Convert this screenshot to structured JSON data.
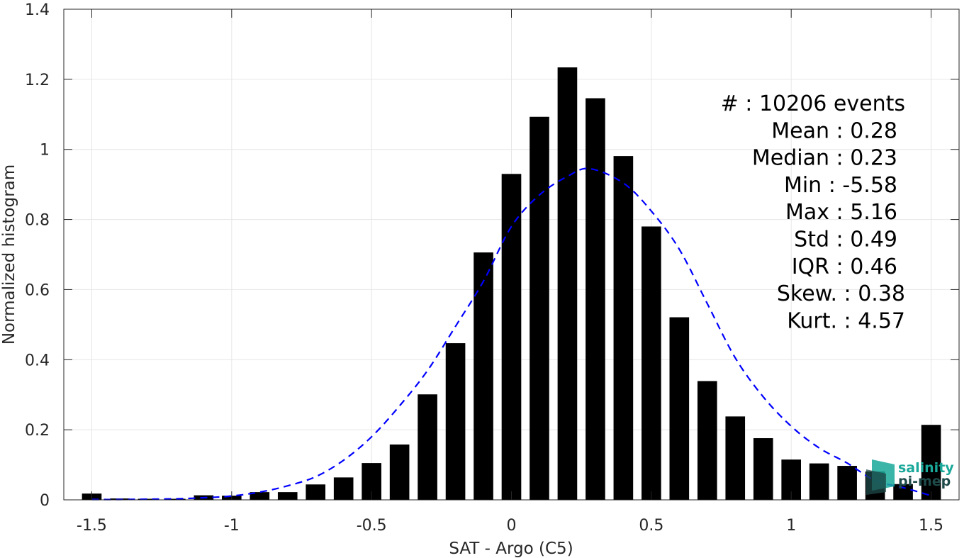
{
  "chart_data": {
    "type": "bar",
    "xlabel": "SAT - Argo (C5)",
    "ylabel": "Normalized histogram",
    "xlim": [
      -1.6,
      1.6
    ],
    "ylim": [
      0,
      1.4
    ],
    "xticks": [
      -1.5,
      -1,
      -0.5,
      0,
      0.5,
      1,
      1.5
    ],
    "xtick_labels": [
      "-1.5",
      "-1",
      "-0.5",
      "0",
      "0.5",
      "1",
      "1.5"
    ],
    "yticks": [
      0,
      0.2,
      0.4,
      0.6,
      0.8,
      1,
      1.2,
      1.4
    ],
    "ytick_labels": [
      "0",
      "0.2",
      "0.4",
      "0.6",
      "0.8",
      "1",
      "1.2",
      "1.4"
    ],
    "grid": true,
    "bar_width": 0.07,
    "bars": {
      "x": [
        -1.5,
        -1.4,
        -1.3,
        -1.2,
        -1.1,
        -1.0,
        -0.9,
        -0.8,
        -0.7,
        -0.6,
        -0.5,
        -0.4,
        -0.3,
        -0.2,
        -0.1,
        0.0,
        0.1,
        0.2,
        0.3,
        0.4,
        0.5,
        0.6,
        0.7,
        0.8,
        0.9,
        1.0,
        1.1,
        1.2,
        1.3,
        1.4,
        1.5
      ],
      "values": [
        0.018,
        0.004,
        0.003,
        0.003,
        0.013,
        0.012,
        0.022,
        0.022,
        0.044,
        0.064,
        0.105,
        0.158,
        0.301,
        0.447,
        0.706,
        0.93,
        1.093,
        1.234,
        1.146,
        0.981,
        0.78,
        0.521,
        0.339,
        0.238,
        0.176,
        0.115,
        0.104,
        0.097,
        0.081,
        0.045,
        0.214
      ],
      "color": "#000000"
    },
    "fit_curve": {
      "style": "dashed",
      "color": "#0000ff",
      "x": [
        -1.5,
        -1.4,
        -1.3,
        -1.2,
        -1.1,
        -1.0,
        -0.9,
        -0.8,
        -0.7,
        -0.6,
        -0.5,
        -0.4,
        -0.3,
        -0.2,
        -0.1,
        0.0,
        0.1,
        0.2,
        0.28,
        0.4,
        0.5,
        0.6,
        0.7,
        0.8,
        0.9,
        1.0,
        1.1,
        1.2,
        1.3,
        1.4,
        1.5
      ],
      "values": [
        0.001,
        0.001,
        0.002,
        0.003,
        0.006,
        0.011,
        0.022,
        0.04,
        0.066,
        0.113,
        0.18,
        0.268,
        0.369,
        0.495,
        0.624,
        0.78,
        0.87,
        0.923,
        0.945,
        0.904,
        0.824,
        0.715,
        0.56,
        0.405,
        0.294,
        0.21,
        0.148,
        0.105,
        0.055,
        0.035,
        0.012
      ]
    },
    "annotation_lines": [
      "#  : 10206 events",
      "Mean : 0.28",
      "Median : 0.23",
      "Min : -5.58",
      "Max : 5.16",
      "Std : 0.49",
      "IQR : 0.46",
      "Skew. : 0.38",
      "Kurt. : 4.57"
    ]
  },
  "logo": {
    "line1": "salinity",
    "line2": "pi-mep",
    "accent_color": "#1aa89a",
    "dark_color": "#1f4a4a"
  }
}
